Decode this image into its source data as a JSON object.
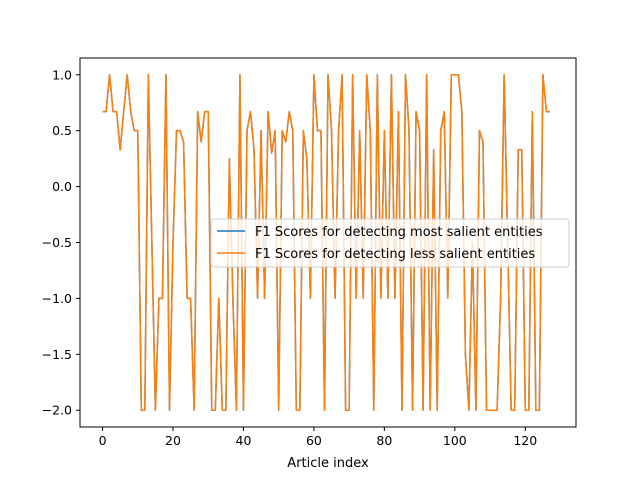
{
  "chart_data": {
    "type": "line",
    "title": "",
    "xlabel": "Article index",
    "ylabel": "",
    "xlim": [
      -6.4,
      134.4
    ],
    "ylim": [
      -2.15,
      1.15
    ],
    "xticks": [
      0,
      20,
      40,
      60,
      80,
      100,
      120
    ],
    "yticks": [
      1.0,
      0.5,
      0.0,
      -0.5,
      -1.0,
      -1.5,
      -2.0
    ],
    "ytick_labels": [
      "1.0",
      "0.5",
      "0.0",
      "−0.5",
      "−1.0",
      "−1.5",
      "−2.0"
    ],
    "grid": false,
    "legend": "center-right",
    "series": [
      {
        "name": "F1 Scores for detecting most salient entities",
        "color": "#1f77b4",
        "values": [
          0.67,
          0.67,
          1.0,
          0.67,
          0.67,
          0.33,
          0.67,
          1.0,
          0.67,
          0.5,
          0.5,
          -2.0,
          -2.0,
          1.0,
          -0.5,
          -2.0,
          -1.0,
          -1.0,
          1.0,
          -2.0,
          -0.5,
          0.5,
          0.5,
          0.4,
          -1.0,
          -1.0,
          -2.0,
          0.67,
          0.4,
          0.67,
          0.67,
          -2.0,
          -2.0,
          -1.0,
          -2.0,
          -2.0,
          0.25,
          -1.0,
          -2.0,
          1.0,
          -2.0,
          0.5,
          0.67,
          0.33,
          -1.0,
          0.5,
          -1.0,
          0.67,
          0.3,
          0.5,
          -2.0,
          0.5,
          0.4,
          0.67,
          0.5,
          -2.0,
          -2.0,
          0.5,
          0.25,
          -1.0,
          1.0,
          0.5,
          0.5,
          -2.0,
          1.0,
          0.5,
          -1.0,
          0.5,
          1.0,
          -2.0,
          -2.0,
          1.0,
          -1.0,
          0.5,
          -1.0,
          1.0,
          0.5,
          -2.0,
          1.0,
          -1.0,
          0.5,
          -1.0,
          1.0,
          -1.0,
          0.67,
          -2.0,
          1.0,
          0.5,
          -2.0,
          0.67,
          0.5,
          -2.0,
          1.0,
          -2.0,
          0.33,
          -2.0,
          0.5,
          0.67,
          -1.0,
          1.0,
          1.0,
          1.0,
          0.67,
          -1.5,
          -2.0,
          -0.5,
          -2.0,
          0.5,
          0.4,
          -2.0,
          -2.0,
          -2.0,
          -2.0,
          -1.0,
          1.0,
          -0.5,
          -2.0,
          -2.0,
          0.33,
          0.33,
          -2.0,
          -2.0,
          0.67,
          -2.0,
          -2.0,
          1.0,
          0.67,
          0.67
        ]
      },
      {
        "name": "F1 Scores for detecting less salient entities",
        "color": "#ff7f0e",
        "values": [
          0.67,
          0.67,
          1.0,
          0.67,
          0.67,
          0.33,
          0.67,
          1.0,
          0.67,
          0.5,
          0.5,
          -2.0,
          -2.0,
          1.0,
          -0.5,
          -2.0,
          -1.0,
          -1.0,
          1.0,
          -2.0,
          -0.5,
          0.5,
          0.5,
          0.4,
          -1.0,
          -1.0,
          -2.0,
          0.67,
          0.4,
          0.67,
          0.67,
          -2.0,
          -2.0,
          -1.0,
          -2.0,
          -2.0,
          0.25,
          -1.0,
          -2.0,
          1.0,
          -2.0,
          0.5,
          0.67,
          0.33,
          -1.0,
          0.5,
          -1.0,
          0.67,
          0.3,
          0.5,
          -2.0,
          0.5,
          0.4,
          0.67,
          0.5,
          -2.0,
          -2.0,
          0.5,
          0.25,
          -1.0,
          1.0,
          0.5,
          0.5,
          -2.0,
          1.0,
          0.5,
          -1.0,
          0.5,
          1.0,
          -2.0,
          -2.0,
          1.0,
          -1.0,
          0.5,
          -1.0,
          1.0,
          0.5,
          -2.0,
          1.0,
          -1.0,
          0.5,
          -1.0,
          1.0,
          -1.0,
          0.67,
          -2.0,
          1.0,
          0.5,
          -2.0,
          0.67,
          0.5,
          -2.0,
          1.0,
          -2.0,
          0.33,
          -2.0,
          0.5,
          0.67,
          -1.0,
          1.0,
          1.0,
          1.0,
          0.67,
          -1.5,
          -2.0,
          -0.5,
          -2.0,
          0.5,
          0.4,
          -2.0,
          -2.0,
          -2.0,
          -2.0,
          -1.0,
          1.0,
          -0.5,
          -2.0,
          -2.0,
          0.33,
          0.33,
          -2.0,
          -2.0,
          0.67,
          -2.0,
          -2.0,
          1.0,
          0.67,
          0.67
        ]
      }
    ]
  }
}
